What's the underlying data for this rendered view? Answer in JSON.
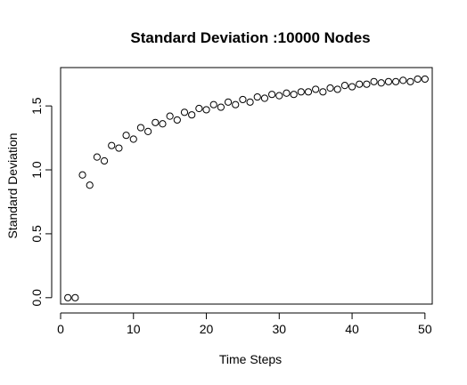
{
  "chart_data": {
    "type": "scatter",
    "title": "Standard Deviation :10000 Nodes",
    "xlabel": "Time Steps",
    "ylabel": "Standard Deviation",
    "xlim": [
      0,
      51
    ],
    "ylim": [
      -0.05,
      1.8
    ],
    "xticks": [
      0,
      10,
      20,
      30,
      40,
      50
    ],
    "yticks": [
      0.0,
      0.5,
      1.0,
      1.5
    ],
    "xtick_labels": [
      "0",
      "10",
      "20",
      "30",
      "40",
      "50"
    ],
    "ytick_labels": [
      "0.0",
      "0.5",
      "1.0",
      "1.5"
    ],
    "grid": false,
    "marker": "open-circle",
    "x": [
      1,
      2,
      3,
      4,
      5,
      6,
      7,
      8,
      9,
      10,
      11,
      12,
      13,
      14,
      15,
      16,
      17,
      18,
      19,
      20,
      21,
      22,
      23,
      24,
      25,
      26,
      27,
      28,
      29,
      30,
      31,
      32,
      33,
      34,
      35,
      36,
      37,
      38,
      39,
      40,
      41,
      42,
      43,
      44,
      45,
      46,
      47,
      48,
      49,
      50
    ],
    "y": [
      0.0,
      0.0,
      0.96,
      0.88,
      1.1,
      1.07,
      1.19,
      1.17,
      1.27,
      1.24,
      1.33,
      1.3,
      1.37,
      1.36,
      1.42,
      1.39,
      1.45,
      1.43,
      1.48,
      1.47,
      1.51,
      1.49,
      1.53,
      1.51,
      1.55,
      1.53,
      1.57,
      1.56,
      1.59,
      1.58,
      1.6,
      1.59,
      1.61,
      1.61,
      1.63,
      1.61,
      1.64,
      1.63,
      1.66,
      1.65,
      1.67,
      1.67,
      1.69,
      1.68,
      1.69,
      1.69,
      1.7,
      1.69,
      1.71,
      1.71
    ]
  }
}
